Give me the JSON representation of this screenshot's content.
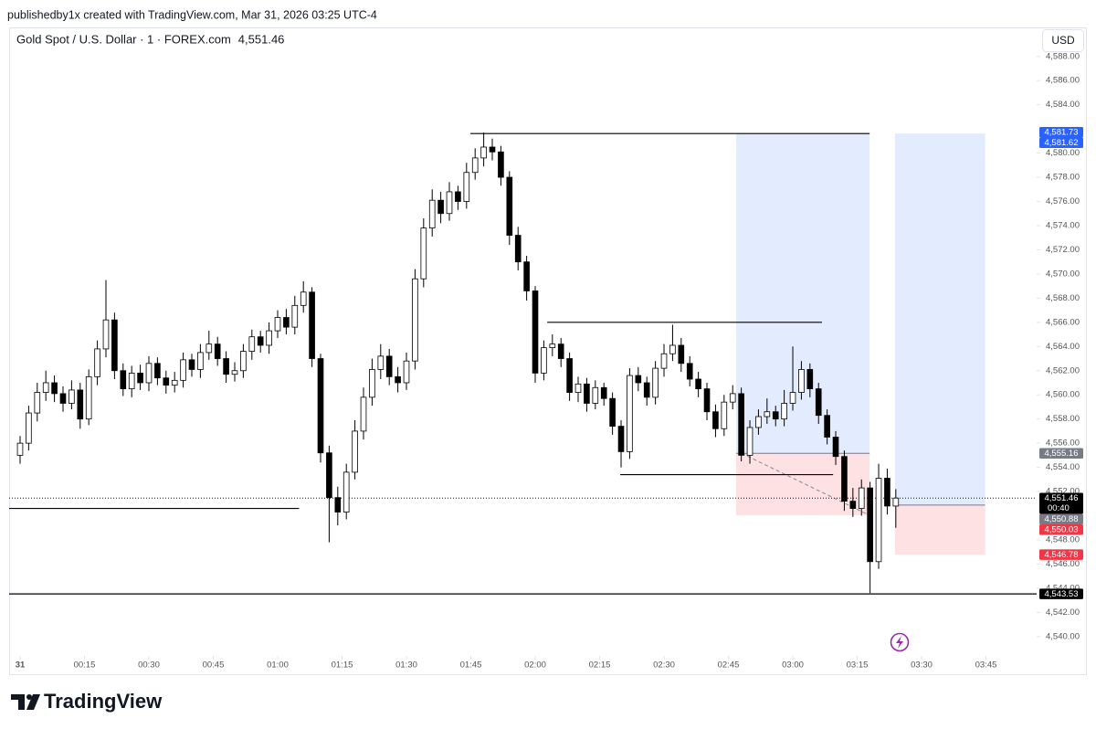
{
  "header": {
    "credit": "publishedby1x created with TradingView.com, Mar 31, 2026 03:25 UTC-4"
  },
  "footer": {
    "brand": "TradingView"
  },
  "chart_data": {
    "type": "candlestick",
    "title": "Gold Spot / U.S. Dollar · 1 · FOREX.com",
    "last_price": {
      "value": 4551.46,
      "label": "4,551.46"
    },
    "currency": "USD",
    "countdown": "00:40",
    "up_color": "#ffffff",
    "down_color": "#000000",
    "border_color": "#000000",
    "profit_color": "#2962ff",
    "loss_color": "#f23645",
    "xlim": [
      -2.55,
      236.8
    ],
    "ylim": [
      4538.4,
      4590.4
    ],
    "xticks": [
      {
        "value": 0,
        "label": "31"
      },
      {
        "value": 15,
        "label": "00:15"
      },
      {
        "value": 30,
        "label": "00:30"
      },
      {
        "value": 45,
        "label": "00:45"
      },
      {
        "value": 60,
        "label": "01:00"
      },
      {
        "value": 75,
        "label": "01:15"
      },
      {
        "value": 90,
        "label": "01:30"
      },
      {
        "value": 105,
        "label": "01:45"
      },
      {
        "value": 120,
        "label": "02:00"
      },
      {
        "value": 135,
        "label": "02:15"
      },
      {
        "value": 150,
        "label": "02:30"
      },
      {
        "value": 165,
        "label": "02:45"
      },
      {
        "value": 180,
        "label": "03:00"
      },
      {
        "value": 195,
        "label": "03:15"
      },
      {
        "value": 210,
        "label": "03:30"
      },
      {
        "value": 225,
        "label": "03:45"
      }
    ],
    "yticks": [
      {
        "value": 4540,
        "label": "4,540.00"
      },
      {
        "value": 4542,
        "label": "4,542.00"
      },
      {
        "value": 4544,
        "label": "4,544.00"
      },
      {
        "value": 4546,
        "label": "4,546.00"
      },
      {
        "value": 4548,
        "label": "4,548.00"
      },
      {
        "value": 4552,
        "label": "4,552.00"
      },
      {
        "value": 4554,
        "label": "4,554.00"
      },
      {
        "value": 4556,
        "label": "4,556.00"
      },
      {
        "value": 4558,
        "label": "4,558.00"
      },
      {
        "value": 4560,
        "label": "4,560.00"
      },
      {
        "value": 4562,
        "label": "4,562.00"
      },
      {
        "value": 4564,
        "label": "4,564.00"
      },
      {
        "value": 4566,
        "label": "4,566.00"
      },
      {
        "value": 4568,
        "label": "4,568.00"
      },
      {
        "value": 4570,
        "label": "4,570.00"
      },
      {
        "value": 4572,
        "label": "4,572.00"
      },
      {
        "value": 4574,
        "label": "4,574.00"
      },
      {
        "value": 4576,
        "label": "4,576.00"
      },
      {
        "value": 4578,
        "label": "4,578.00"
      },
      {
        "value": 4580,
        "label": "4,580.00"
      },
      {
        "value": 4584,
        "label": "4,584.00"
      },
      {
        "value": 4586,
        "label": "4,586.00"
      },
      {
        "value": 4588,
        "label": "4,588.00"
      }
    ],
    "x": [
      0,
      2,
      4,
      6,
      8,
      10,
      12,
      14,
      16,
      18,
      20,
      22,
      24,
      26,
      28,
      30,
      32,
      34,
      36,
      38,
      40,
      42,
      44,
      46,
      48,
      50,
      52,
      54,
      56,
      58,
      60,
      62,
      64,
      66,
      68,
      70,
      72,
      74,
      76,
      78,
      80,
      82,
      84,
      86,
      88,
      90,
      92,
      94,
      96,
      98,
      100,
      102,
      104,
      106,
      108,
      110,
      112,
      114,
      116,
      118,
      120,
      122,
      124,
      126,
      128,
      130,
      132,
      134,
      136,
      138,
      140,
      142,
      144,
      146,
      148,
      150,
      152,
      154,
      156,
      158,
      160,
      162,
      164,
      166,
      168,
      170,
      172,
      174,
      176,
      178,
      180,
      182,
      184,
      186,
      188,
      190,
      192,
      194,
      196,
      198,
      200,
      202,
      204
    ],
    "open": [
      4555.0,
      4556.0,
      4558.5,
      4560.2,
      4561.0,
      4560.1,
      4559.3,
      4560.4,
      4558.0,
      4561.5,
      4563.8,
      4566.2,
      4562.0,
      4560.5,
      4561.8,
      4561.0,
      4562.6,
      4561.4,
      4560.8,
      4561.2,
      4562.9,
      4562.1,
      4563.5,
      4564.2,
      4563.0,
      4561.7,
      4562.0,
      4563.6,
      4564.8,
      4564.1,
      4565.3,
      4566.4,
      4565.6,
      4567.4,
      4568.5,
      4563.0,
      4555.2,
      4551.5,
      4550.3,
      4553.6,
      4557.0,
      4559.8,
      4562.1,
      4563.2,
      4561.5,
      4561.0,
      4562.8,
      4569.6,
      4573.8,
      4576.1,
      4575.0,
      4576.8,
      4576.0,
      4578.4,
      4579.6,
      4580.5,
      4580.1,
      4578.0,
      4573.2,
      4571.0,
      4568.6,
      4561.8,
      4563.9,
      4564.2,
      4563.0,
      4560.2,
      4560.9,
      4559.3,
      4560.6,
      4559.7,
      4557.4,
      4555.3,
      4561.6,
      4561.0,
      4559.8,
      4562.2,
      4563.4,
      4564.1,
      4562.6,
      4561.3,
      4560.5,
      4558.6,
      4557.2,
      4559.4,
      4560.1,
      4555.0,
      4557.3,
      4558.2,
      4558.6,
      4558.0,
      4559.3,
      4560.2,
      4562.1,
      4560.5,
      4558.3,
      4556.5,
      4554.9,
      4551.2,
      4550.6,
      4552.3,
      4546.2,
      4553.1,
      4550.8
    ],
    "high": [
      4556.6,
      4559.1,
      4561.0,
      4562.0,
      4561.6,
      4560.7,
      4561.2,
      4561.0,
      4562.1,
      4564.5,
      4569.5,
      4566.8,
      4562.6,
      4562.4,
      4562.5,
      4563.2,
      4563.1,
      4562.0,
      4561.9,
      4563.5,
      4563.4,
      4564.2,
      4565.3,
      4564.8,
      4563.6,
      4562.7,
      4564.2,
      4565.4,
      4565.3,
      4566.0,
      4567.0,
      4567.1,
      4568.2,
      4569.4,
      4568.9,
      4563.4,
      4555.8,
      4552.4,
      4554.3,
      4557.9,
      4560.6,
      4563.0,
      4564.2,
      4563.8,
      4562.3,
      4563.5,
      4570.4,
      4574.6,
      4577.0,
      4576.8,
      4577.6,
      4577.3,
      4579.2,
      4580.4,
      4581.7,
      4581.2,
      4580.6,
      4578.5,
      4573.9,
      4571.5,
      4569.0,
      4564.5,
      4565.0,
      4564.7,
      4563.5,
      4561.5,
      4561.4,
      4561.2,
      4561.0,
      4560.2,
      4557.9,
      4562.2,
      4562.3,
      4561.5,
      4562.8,
      4564.2,
      4565.8,
      4564.7,
      4563.2,
      4561.9,
      4561.0,
      4559.2,
      4560.0,
      4560.8,
      4560.6,
      4557.9,
      4558.8,
      4559.7,
      4559.1,
      4560.4,
      4564.0,
      4562.8,
      4562.6,
      4561.0,
      4558.8,
      4557.0,
      4555.4,
      4552.3,
      4553.0,
      4552.8,
      4554.3,
      4553.9,
      4552.2
    ],
    "low": [
      4554.3,
      4555.4,
      4557.8,
      4559.5,
      4559.4,
      4558.6,
      4558.8,
      4557.2,
      4557.5,
      4560.8,
      4563.1,
      4561.3,
      4559.9,
      4559.8,
      4560.4,
      4560.3,
      4560.8,
      4560.1,
      4560.2,
      4560.6,
      4561.5,
      4561.4,
      4562.9,
      4562.4,
      4561.0,
      4561.1,
      4561.4,
      4562.9,
      4563.5,
      4563.4,
      4564.7,
      4565.0,
      4565.0,
      4566.8,
      4562.3,
      4554.4,
      4547.8,
      4549.2,
      4549.7,
      4553.0,
      4556.3,
      4559.1,
      4561.3,
      4560.8,
      4560.2,
      4560.4,
      4562.1,
      4568.9,
      4573.1,
      4574.2,
      4574.4,
      4575.3,
      4575.4,
      4577.8,
      4578.9,
      4579.4,
      4577.3,
      4572.4,
      4570.3,
      4567.8,
      4561.0,
      4561.2,
      4563.2,
      4562.3,
      4559.5,
      4559.4,
      4558.6,
      4558.8,
      4559.1,
      4556.7,
      4554.0,
      4554.7,
      4560.3,
      4559.1,
      4559.2,
      4561.5,
      4562.8,
      4561.9,
      4560.7,
      4559.8,
      4557.9,
      4556.5,
      4556.6,
      4558.8,
      4554.5,
      4554.3,
      4556.7,
      4557.6,
      4557.4,
      4557.4,
      4558.7,
      4559.6,
      4559.8,
      4557.6,
      4555.9,
      4554.2,
      4550.4,
      4549.9,
      4550.0,
      4543.6,
      4545.6,
      4550.1,
      4549.0
    ],
    "close": [
      4556.0,
      4558.5,
      4560.2,
      4561.0,
      4560.1,
      4559.3,
      4560.4,
      4558.0,
      4561.5,
      4563.8,
      4566.2,
      4562.0,
      4560.5,
      4561.8,
      4561.0,
      4562.6,
      4561.4,
      4560.8,
      4561.2,
      4562.9,
      4562.1,
      4563.5,
      4564.2,
      4563.0,
      4561.7,
      4562.0,
      4563.6,
      4564.8,
      4564.1,
      4565.3,
      4566.4,
      4565.6,
      4567.4,
      4568.5,
      4563.0,
      4555.2,
      4551.5,
      4550.3,
      4553.6,
      4557.0,
      4559.8,
      4562.1,
      4563.2,
      4561.5,
      4561.0,
      4562.8,
      4569.6,
      4573.8,
      4576.1,
      4575.0,
      4576.8,
      4576.0,
      4578.4,
      4579.6,
      4580.5,
      4580.1,
      4578.0,
      4573.2,
      4571.0,
      4568.6,
      4561.8,
      4563.9,
      4564.2,
      4563.0,
      4560.2,
      4560.9,
      4559.3,
      4560.6,
      4559.7,
      4557.4,
      4555.3,
      4561.6,
      4561.0,
      4559.8,
      4562.2,
      4563.4,
      4564.1,
      4562.6,
      4561.3,
      4560.5,
      4558.6,
      4557.2,
      4559.4,
      4560.1,
      4555.0,
      4557.3,
      4558.2,
      4558.6,
      4558.0,
      4559.3,
      4560.2,
      4562.1,
      4560.5,
      4558.3,
      4556.5,
      4554.9,
      4551.2,
      4550.6,
      4552.3,
      4546.2,
      4553.1,
      4550.8,
      4551.46
    ],
    "levels": [
      {
        "y": 4581.62,
        "x": [
          104.9,
          197.9
        ]
      },
      {
        "y": 4566.0,
        "x": [
          122.8,
          186.8
        ]
      },
      {
        "y": 4553.4,
        "x": [
          139.8,
          189.4
        ]
      },
      {
        "y": 4550.6,
        "x": [
          -2.55,
          65
        ]
      },
      {
        "y": 4543.53
      }
    ],
    "positions": [
      {
        "x": [
          166.8,
          197.9
        ],
        "target": 4581.62,
        "entry": 4555.16,
        "stop": 4550.03
      },
      {
        "x": [
          203.8,
          224.8
        ],
        "target": 4581.62,
        "entry": 4550.88,
        "stop": 4546.78
      }
    ],
    "price_labels": [
      {
        "value": 4581.73,
        "label": "4,581.73",
        "color": "#2962ff"
      },
      {
        "value": 4581.62,
        "label": "4,581.62",
        "color": "#2962ff"
      },
      {
        "value": 4555.16,
        "label": "4,555.16",
        "color": "#787b86"
      },
      {
        "value": 4550.88,
        "label": "4,550.88",
        "color": "#787b86"
      },
      {
        "value": 4550.03,
        "label": "4,550.03",
        "color": "#f23645"
      },
      {
        "value": 4546.78,
        "label": "4,546.78",
        "color": "#f23645"
      },
      {
        "value": 4543.53,
        "label": "4,543.53",
        "color": "#000000"
      }
    ]
  }
}
